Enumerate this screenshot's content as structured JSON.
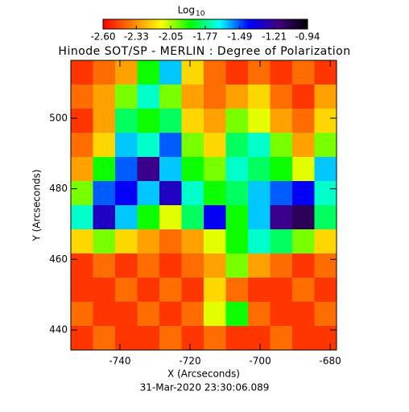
{
  "chart_data": {
    "type": "heatmap",
    "title": "Hinode SOT/SP - MERLIN : Degree of Polarization",
    "xlabel": "X (Arcseconds)",
    "ylabel": "Y (Arcseconds)",
    "footer": "31-Mar-2020 23:30:06.089",
    "xlim": [
      -754,
      -678.2
    ],
    "ylim": [
      434.3,
      516.4
    ],
    "xticks": [
      -740,
      -720,
      -700,
      -680
    ],
    "yticks": [
      440,
      460,
      480,
      500
    ],
    "colormap": [
      "#ff0000",
      "#ff8000",
      "#ffff00",
      "#00ff00",
      "#00ffff",
      "#0000ff",
      "#400080",
      "#000000"
    ],
    "colorbar": {
      "title": "Log",
      "title_subscript": "10",
      "clim": [
        -2.6,
        -0.94
      ],
      "ticks": [
        {
          "value": -2.6,
          "label": "-2.60"
        },
        {
          "value": -2.33,
          "label": "-2.33"
        },
        {
          "value": -2.05,
          "label": "-2.05"
        },
        {
          "value": -1.77,
          "label": "-1.77"
        },
        {
          "value": -1.49,
          "label": "-1.49"
        },
        {
          "value": -1.21,
          "label": "-1.21"
        },
        {
          "value": -0.94,
          "label": "-0.94"
        }
      ]
    },
    "z": [
      [
        -2.5,
        -2.4,
        -2.3,
        -1.9,
        -1.6,
        -2.2,
        -2.4,
        -2.5,
        -2.4,
        -2.5,
        -2.4,
        -2.5
      ],
      [
        -2.4,
        -2.3,
        -2.0,
        -1.7,
        -2.0,
        -2.3,
        -2.4,
        -2.3,
        -2.2,
        -2.4,
        -2.5,
        -2.3
      ],
      [
        -2.5,
        -2.3,
        -1.8,
        -1.9,
        -1.8,
        -2.2,
        -2.3,
        -2.0,
        -2.1,
        -2.3,
        -2.4,
        -2.2
      ],
      [
        -2.4,
        -2.2,
        -1.6,
        -1.7,
        -1.5,
        -2.0,
        -2.2,
        -1.8,
        -1.7,
        -2.0,
        -2.3,
        -2.0
      ],
      [
        -2.3,
        -1.9,
        -1.5,
        -1.2,
        -1.6,
        -1.9,
        -2.0,
        -1.7,
        -1.8,
        -1.9,
        -2.1,
        -1.6
      ],
      [
        -2.0,
        -1.5,
        -1.4,
        -1.6,
        -1.3,
        -1.7,
        -1.9,
        -1.8,
        -1.6,
        -1.5,
        -1.4,
        -1.7
      ],
      [
        -1.7,
        -1.3,
        -1.6,
        -1.9,
        -2.1,
        -1.8,
        -1.4,
        -1.9,
        -1.6,
        -1.2,
        -1.1,
        -1.8
      ],
      [
        -2.2,
        -2.0,
        -2.2,
        -2.3,
        -2.4,
        -2.3,
        -2.1,
        -1.9,
        -1.7,
        -1.8,
        -2.0,
        -2.2
      ],
      [
        -2.5,
        -2.4,
        -2.5,
        -2.4,
        -2.5,
        -2.4,
        -2.3,
        -2.0,
        -2.3,
        -2.4,
        -2.5,
        -2.4
      ],
      [
        -2.5,
        -2.5,
        -2.4,
        -2.5,
        -2.4,
        -2.5,
        -2.2,
        -2.4,
        -2.5,
        -2.5,
        -2.4,
        -2.5
      ],
      [
        -2.4,
        -2.5,
        -2.5,
        -2.4,
        -2.5,
        -2.4,
        -2.1,
        -1.9,
        -2.4,
        -2.5,
        -2.5,
        -2.4
      ],
      [
        -2.5,
        -2.4,
        -2.5,
        -2.5,
        -2.4,
        -2.5,
        -2.4,
        -2.5,
        -2.5,
        -2.4,
        -2.5,
        -2.5
      ]
    ]
  }
}
